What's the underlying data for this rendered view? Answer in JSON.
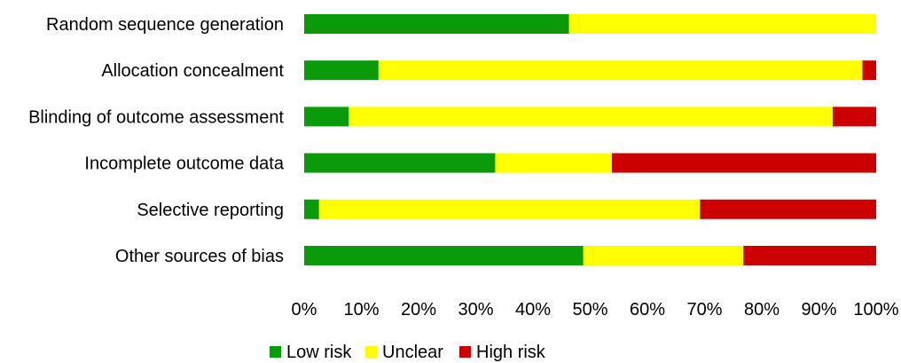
{
  "chart_data": {
    "type": "bar",
    "orientation": "horizontal",
    "stacked": true,
    "categories": [
      "Random sequence generation",
      "Allocation concealment",
      "Blinding of outcome assessment",
      "Incomplete outcome data",
      "Selective reporting",
      "Other sources of bias"
    ],
    "series": [
      {
        "name": "Low risk",
        "color": "#0a9a0a",
        "values": [
          46.3,
          13.0,
          7.8,
          33.4,
          2.6,
          48.8
        ]
      },
      {
        "name": "Unclear",
        "color": "#ffff00",
        "values": [
          53.7,
          84.6,
          84.6,
          20.4,
          66.6,
          28.0
        ]
      },
      {
        "name": "High risk",
        "color": "#cc0000",
        "values": [
          0,
          2.4,
          7.6,
          46.2,
          30.8,
          23.2
        ]
      }
    ],
    "xlim": [
      0,
      100
    ],
    "xticks": [
      "0%",
      "10%",
      "20%",
      "30%",
      "40%",
      "50%",
      "60%",
      "70%",
      "80%",
      "90%",
      "100%"
    ],
    "grid": false,
    "legend_position": "bottom"
  }
}
